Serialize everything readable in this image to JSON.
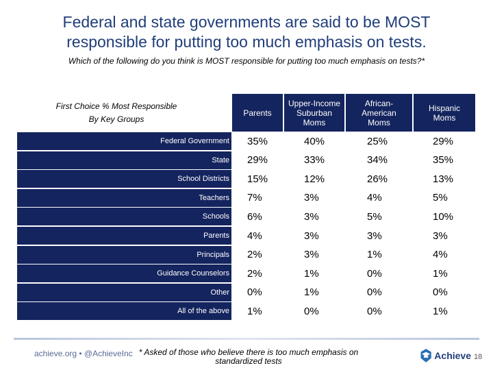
{
  "title_line1": "Federal and state governments are said to be MOST",
  "title_line2": "responsible for putting too much emphasis on tests.",
  "subtitle": "Which of the following do you think is MOST responsible for putting too much emphasis on tests?*",
  "group_label_line1": "First Choice % Most Responsible",
  "group_label_line2": "By Key Groups",
  "columns": [
    {
      "line1": "Parents",
      "line2": "",
      "line3": ""
    },
    {
      "line1": "Upper-Income",
      "line2": "Suburban",
      "line3": "Moms"
    },
    {
      "line1": "African-",
      "line2": "American",
      "line3": "Moms"
    },
    {
      "line1": "Hispanic",
      "line2": "Moms",
      "line3": ""
    }
  ],
  "rows": [
    {
      "label": "Federal Government",
      "values": [
        "35%",
        "40%",
        "25%",
        "29%"
      ]
    },
    {
      "label": "State",
      "values": [
        "29%",
        "33%",
        "34%",
        "35%"
      ]
    },
    {
      "label": "School Districts",
      "values": [
        "15%",
        "12%",
        "26%",
        "13%"
      ]
    },
    {
      "label": "Teachers",
      "values": [
        "7%",
        "3%",
        "4%",
        "5%"
      ]
    },
    {
      "label": "Schools",
      "values": [
        "6%",
        "3%",
        "5%",
        "10%"
      ]
    },
    {
      "label": "Parents",
      "values": [
        "4%",
        "3%",
        "3%",
        "3%"
      ]
    },
    {
      "label": "Principals",
      "values": [
        "2%",
        "3%",
        "1%",
        "4%"
      ]
    },
    {
      "label": "Guidance Counselors",
      "values": [
        "2%",
        "1%",
        "0%",
        "1%"
      ]
    },
    {
      "label": "Other",
      "values": [
        "0%",
        "1%",
        "0%",
        "0%"
      ]
    },
    {
      "label": "All of the above",
      "values": [
        "1%",
        "0%",
        "0%",
        "1%"
      ]
    }
  ],
  "footer_left": "achieve.org • @AchieveInc",
  "footnote_line1": "* Asked of those who believe there is too much emphasis on",
  "footnote_line2": "standardized tests",
  "logo_text": "Achieve",
  "page_number": "18",
  "colors": {
    "navy": "#14245e",
    "title_blue": "#1f3d7a"
  }
}
